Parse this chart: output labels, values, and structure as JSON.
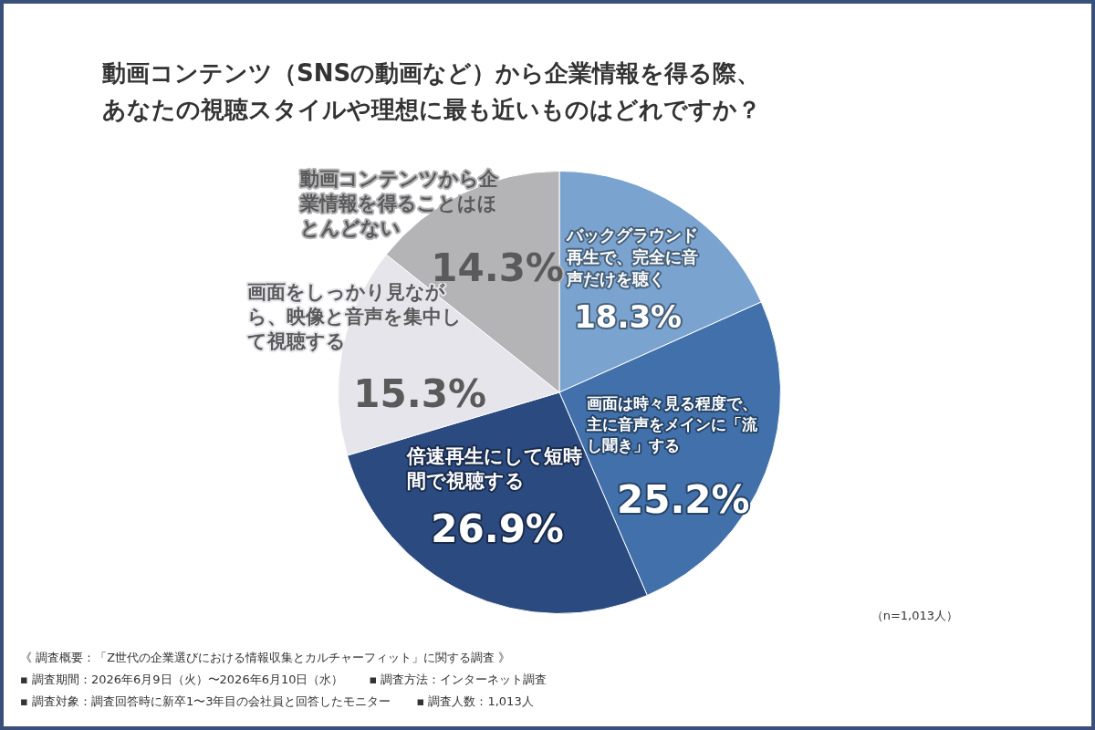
{
  "chart_data": {
    "type": "pie",
    "title": "動画コンテンツ（SNSの動画など）から企業情報を得る際、あなたの視聴スタイルや理想に最も近いものはどれですか？",
    "categories": [
      "バックグラウンド再生で、完全に音声だけを聴く",
      "画面は時々見る程度で、主に音声をメインに「流し聞き」する",
      "倍速再生にして短時間で視聴する",
      "画面をしっかり見ながら、映像と音声を集中して視聴する",
      "動画コンテンツから企業情報を得ることはほとんどない"
    ],
    "values": [
      18.3,
      25.2,
      26.9,
      15.3,
      14.3
    ],
    "value_labels": [
      "18.3%",
      "25.2%",
      "26.9%",
      "15.3%",
      "14.3%"
    ],
    "colors": [
      "#7aa3cf",
      "#4170aa",
      "#2b4a80",
      "#e5e5eb",
      "#b4b4b7"
    ],
    "legend": false,
    "annotations": [
      "（n=1,013人）",
      "《 調査概要：「Z世代の企業選びにおける情報収集とカルチャーフィット」に関する調査 》",
      "▪ 調査期間：2026年6月9日（火）〜2026年6月10日（水）",
      "▪ 調査方法：インターネット調査",
      "▪ 調査対象：調査回答時に新卒1〜3年目の会社員と回答したモニター",
      "▪ 調査人数：1,013人"
    ]
  }
}
